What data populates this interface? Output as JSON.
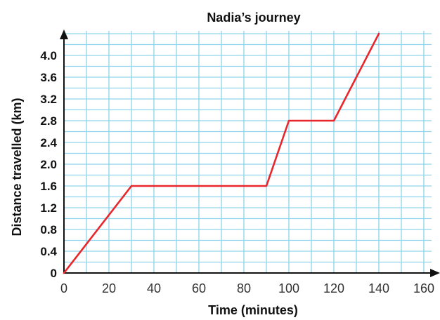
{
  "chart_data": {
    "type": "line",
    "title": "Nadia’s journey",
    "xlabel": "Time (minutes)",
    "ylabel": "Distance travelled (km)",
    "xlim": [
      0,
      165
    ],
    "ylim": [
      0,
      4.4
    ],
    "xticks": [
      0,
      20,
      40,
      60,
      80,
      100,
      120,
      140,
      160
    ],
    "xtick_labels": [
      "0",
      "20",
      "40",
      "60",
      "80",
      "100",
      "120",
      "140",
      "160"
    ],
    "yticks": [
      0,
      0.4,
      0.8,
      1.2,
      1.6,
      2.0,
      2.4,
      2.8,
      3.2,
      3.6,
      4.0
    ],
    "ytick_labels": [
      "0",
      "0.4",
      "0.8",
      "1.2",
      "1.6",
      "2.0",
      "2.4",
      "2.8",
      "3.2",
      "3.6",
      "4.0"
    ],
    "grid": true,
    "grid_color": "#8fd3ec",
    "line_color": "#e8262b",
    "series": [
      {
        "x": [
          0,
          30,
          90,
          100,
          120,
          140
        ],
        "y": [
          0,
          1.6,
          1.6,
          2.8,
          2.8,
          4.4
        ]
      }
    ]
  }
}
